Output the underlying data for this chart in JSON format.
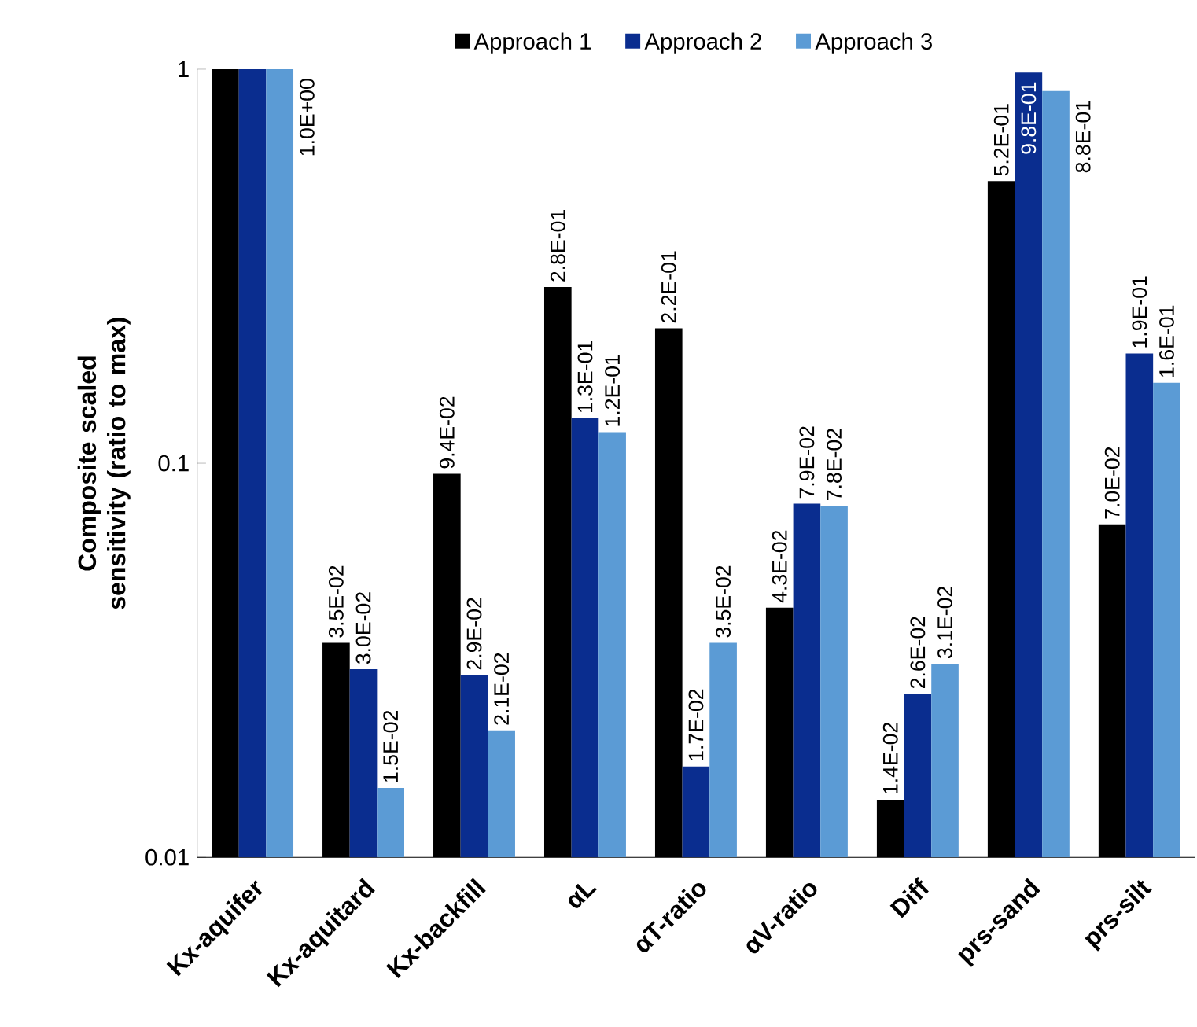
{
  "chart_data": {
    "type": "bar",
    "ylabel": "Composite scaled sensitivity (ratio to max)",
    "categories": [
      "Kx-aquifer",
      "Kx-aquitard",
      "Kx-backfill",
      "αL",
      "αT-ratio",
      "αV-ratio",
      "Diff",
      "prs-sand",
      "prs-silt"
    ],
    "series": [
      {
        "name": "Approach 1",
        "color": "#000000",
        "values": [
          1.0,
          0.035,
          0.094,
          0.28,
          0.22,
          0.043,
          0.014,
          0.52,
          0.07
        ],
        "value_labels": [
          null,
          "3.5E-02",
          "9.4E-02",
          "2.8E-01",
          "2.2E-01",
          "4.3E-02",
          "1.4E-02",
          "5.2E-01",
          "7.0E-02"
        ]
      },
      {
        "name": "Approach 2",
        "color": "#0a2d8f",
        "values": [
          1.0,
          0.03,
          0.029,
          0.13,
          0.017,
          0.079,
          0.026,
          0.98,
          0.19
        ],
        "value_labels": [
          null,
          "3.0E-02",
          "2.9E-02",
          "1.3E-01",
          "1.7E-02",
          "7.9E-02",
          "2.6E-02",
          "9.8E-01",
          "1.9E-01"
        ]
      },
      {
        "name": "Approach 3",
        "color": "#5b9bd5",
        "values": [
          1.0,
          0.015,
          0.021,
          0.12,
          0.035,
          0.078,
          0.031,
          0.88,
          0.16
        ],
        "value_labels": [
          "1.0E+00",
          "1.5E-02",
          "2.1E-02",
          "1.2E-01",
          "3.5E-02",
          "7.8E-02",
          "3.1E-02",
          "8.8E-01",
          "1.6E-01"
        ]
      }
    ],
    "log": "y",
    "ylim": [
      0.01,
      1
    ],
    "yticks": [
      0.01,
      0.1,
      1
    ],
    "legend": "top",
    "grid": false
  }
}
